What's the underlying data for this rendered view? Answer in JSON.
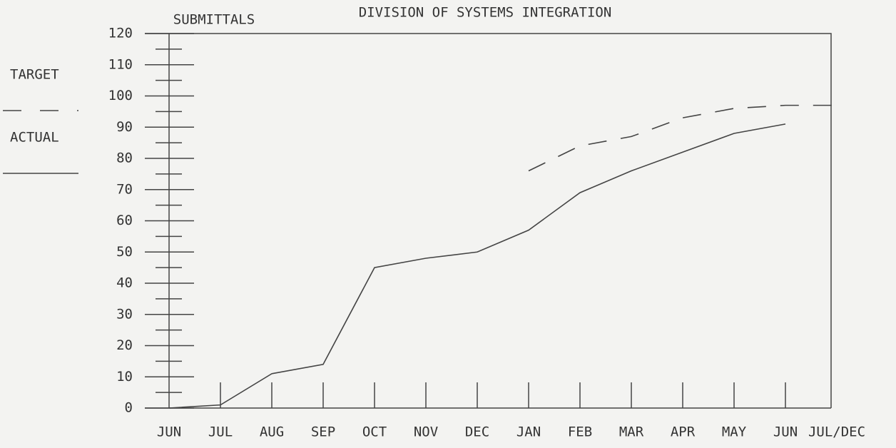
{
  "chart_data": {
    "type": "line",
    "title": "DIVISION OF SYSTEMS INTEGRATION",
    "y_label": "SUBMITTALS",
    "categories": [
      "JUN",
      "JUL",
      "AUG",
      "SEP",
      "OCT",
      "NOV",
      "DEC",
      "JAN",
      "FEB",
      "MAR",
      "APR",
      "MAY",
      "JUN",
      "JUL/DEC"
    ],
    "series": [
      {
        "name": "TARGET",
        "color": "#444444",
        "dash": true,
        "values": [
          null,
          null,
          null,
          null,
          null,
          null,
          null,
          76,
          84,
          87,
          93,
          96,
          97,
          97
        ]
      },
      {
        "name": "ACTUAL",
        "color": "#444444",
        "dash": false,
        "values": [
          0,
          1,
          11,
          14,
          45,
          48,
          50,
          57,
          69,
          76,
          82,
          88,
          91,
          null
        ]
      }
    ],
    "ylim": [
      0,
      120
    ],
    "yticks": [
      0,
      10,
      20,
      30,
      40,
      50,
      60,
      70,
      80,
      90,
      100,
      110,
      120
    ],
    "legend": "left"
  }
}
